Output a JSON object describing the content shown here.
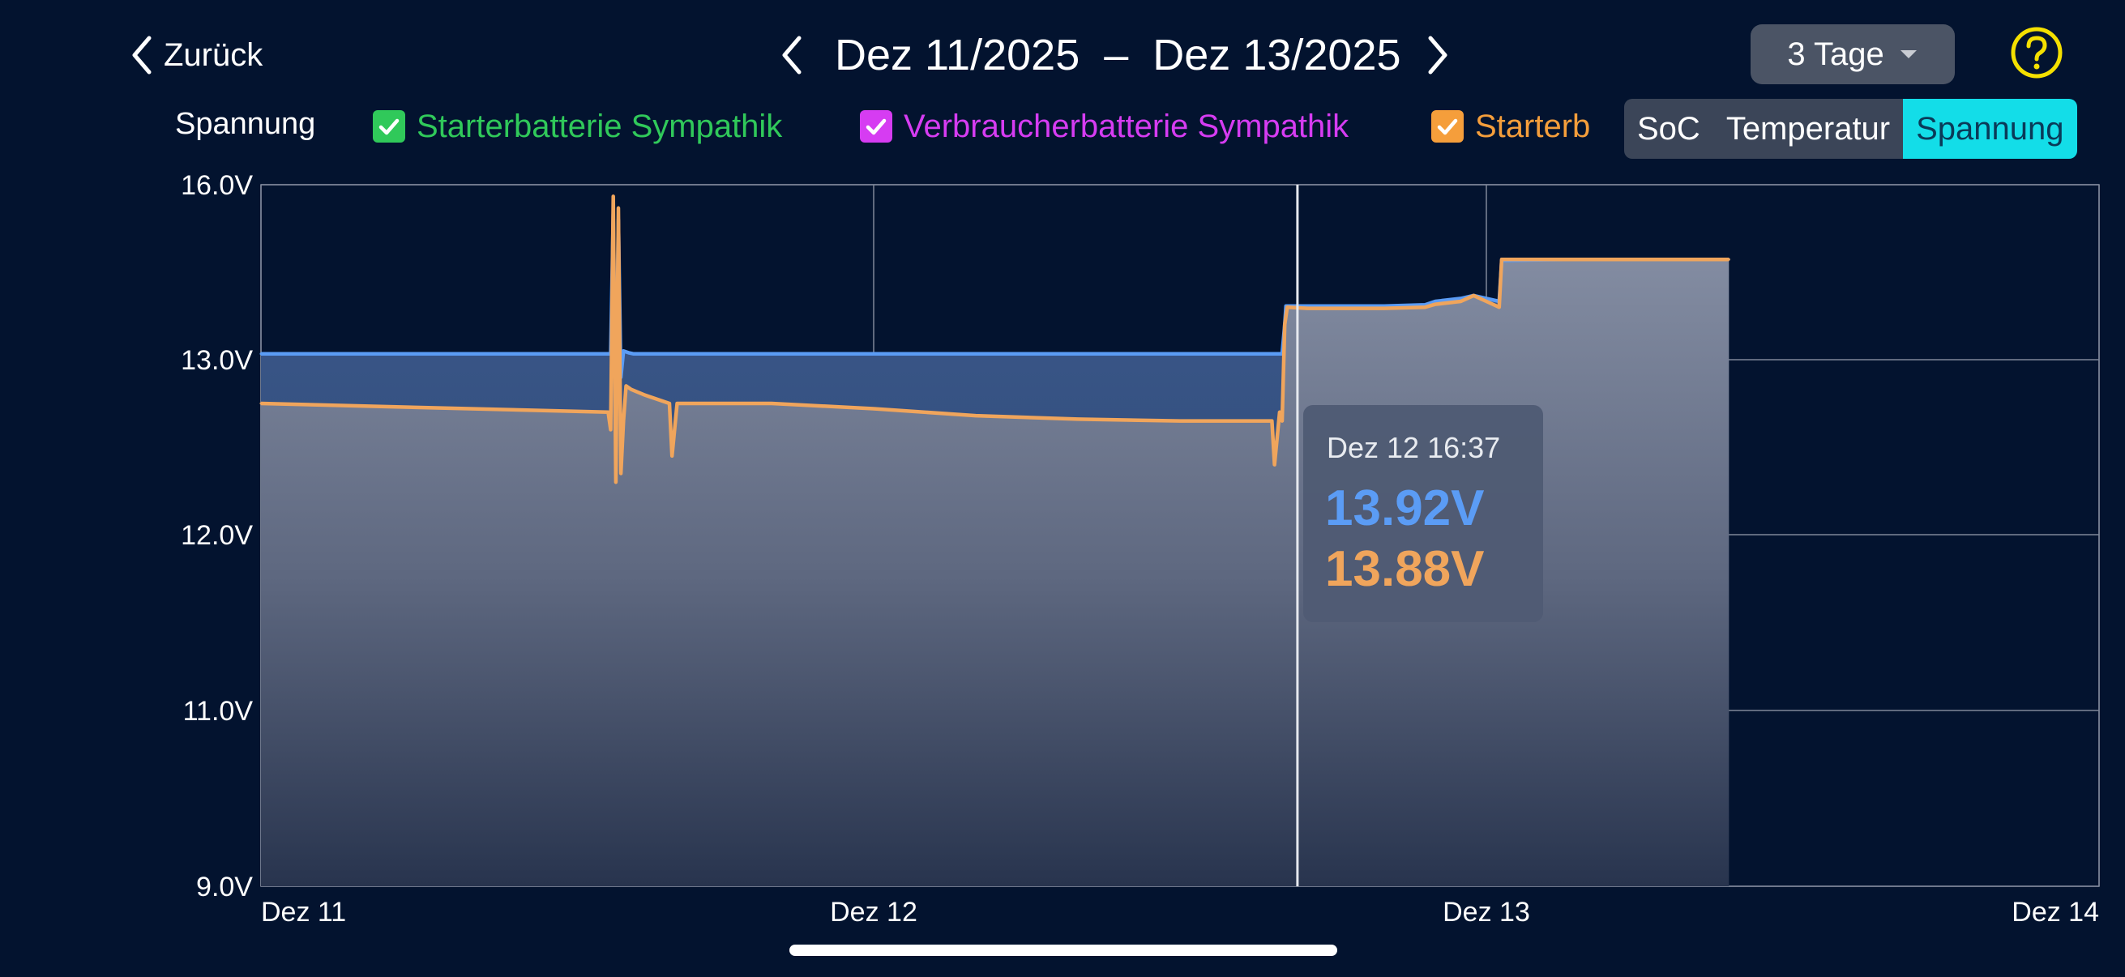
{
  "header": {
    "back_label": "Zurück",
    "date_from": "Dez 11/2025",
    "date_separator": "–",
    "date_to": "Dez 13/2025",
    "range_label": "3 Tage",
    "help_icon": "help-icon"
  },
  "legend": {
    "title": "Spannung",
    "items": [
      {
        "label": "Starterbatterie Sympathik",
        "color": "#30c95a",
        "checked": true
      },
      {
        "label": "Verbraucherbatterie Sympathik",
        "color": "#d63cf2",
        "checked": true
      },
      {
        "label": "Starterb",
        "color": "#f59e3b",
        "checked": true
      }
    ]
  },
  "segments": [
    "SoC",
    "Temperatur",
    "Spannung"
  ],
  "active_segment": "Spannung",
  "tooltip": {
    "time": "Dez 12 16:37",
    "value_blue": "13.92V",
    "value_orange": "13.88V"
  },
  "colors": {
    "blue_series": "#5b9cf5",
    "orange_series": "#f0a55c",
    "accent_active": "#13dde8",
    "help": "#f5e000"
  },
  "chart_data": {
    "type": "area",
    "ylabel": "Spannung",
    "y_ticks": [
      "16.0V",
      "13.0V",
      "12.0V",
      "11.0V",
      "9.0V"
    ],
    "x_ticks": [
      "Dez 11",
      "Dez 12",
      "Dez 13",
      "Dez 14"
    ],
    "x_unit": "hours since Dez 11 00:00",
    "xlim": [
      0,
      72
    ],
    "grid": true,
    "cursor_x": 40.6,
    "series": [
      {
        "name": "Starterbatterie Sympathik",
        "color": "#5b9cf5",
        "x": [
          0,
          13.7,
          13.8,
          13.9,
          14.0,
          14.1,
          14.2,
          14.4,
          14.6,
          16,
          20,
          24,
          28,
          32,
          36,
          40.0,
          40.1,
          40.15,
          41,
          44,
          45.6,
          46,
          47,
          47.5,
          48,
          48.5,
          48.6,
          51,
          54,
          57.5
        ],
        "y": [
          13.1,
          13.1,
          15.5,
          12.6,
          15.4,
          12.9,
          13.15,
          13.12,
          13.1,
          13.1,
          13.1,
          13.1,
          13.1,
          13.1,
          13.1,
          13.1,
          13.6,
          13.92,
          13.92,
          13.92,
          13.94,
          14.0,
          14.05,
          14.1,
          14.05,
          14.0,
          14.7,
          14.72,
          14.72,
          14.72
        ]
      },
      {
        "name": "Starterb",
        "color": "#f0a55c",
        "x": [
          0,
          13.6,
          13.7,
          13.8,
          13.9,
          14.0,
          14.1,
          14.2,
          14.3,
          14.5,
          15.0,
          16.0,
          16.1,
          16.3,
          20,
          24,
          28,
          32,
          36,
          39.6,
          39.7,
          39.9,
          40.0,
          40.1,
          40.2,
          41,
          44,
          45.6,
          46,
          47,
          47.5,
          48,
          48.5,
          48.6,
          51,
          54,
          57.5
        ],
        "y": [
          12.75,
          12.7,
          12.6,
          15.8,
          12.3,
          15.6,
          12.35,
          12.65,
          12.85,
          12.83,
          12.8,
          12.75,
          12.45,
          12.75,
          12.75,
          12.72,
          12.68,
          12.66,
          12.65,
          12.65,
          12.4,
          12.7,
          12.65,
          13.6,
          13.9,
          13.88,
          13.88,
          13.9,
          13.95,
          14.0,
          14.1,
          14.0,
          13.9,
          14.72,
          14.72,
          14.72,
          14.72
        ]
      }
    ]
  }
}
